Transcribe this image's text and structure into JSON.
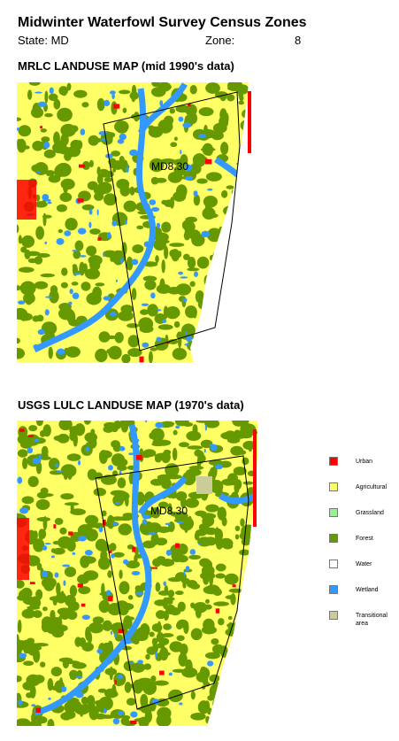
{
  "header": {
    "title": "Midwinter Waterfowl Survey Census Zones",
    "state": "State: MD",
    "zone_label": "Zone:",
    "zone": "8"
  },
  "maps": [
    {
      "title": "MRLC LANDUSE MAP (mid 1990's data)",
      "zone_name": "MD8.30"
    },
    {
      "title": "USGS LULC LANDUSE MAP (1970's data)",
      "zone_name": "MD8.30"
    }
  ],
  "legend": [
    {
      "label": "Urban",
      "color": "#ff0000"
    },
    {
      "label": "Agricultural",
      "color": "#ffff66"
    },
    {
      "label": "Grassland",
      "color": "#99ee99"
    },
    {
      "label": "Forest",
      "color": "#669900"
    },
    {
      "label": "Water",
      "color": "#ffffff"
    },
    {
      "label": "Wetland",
      "color": "#3399ff"
    },
    {
      "label": "Transitional area",
      "color": "#cccc99"
    }
  ]
}
